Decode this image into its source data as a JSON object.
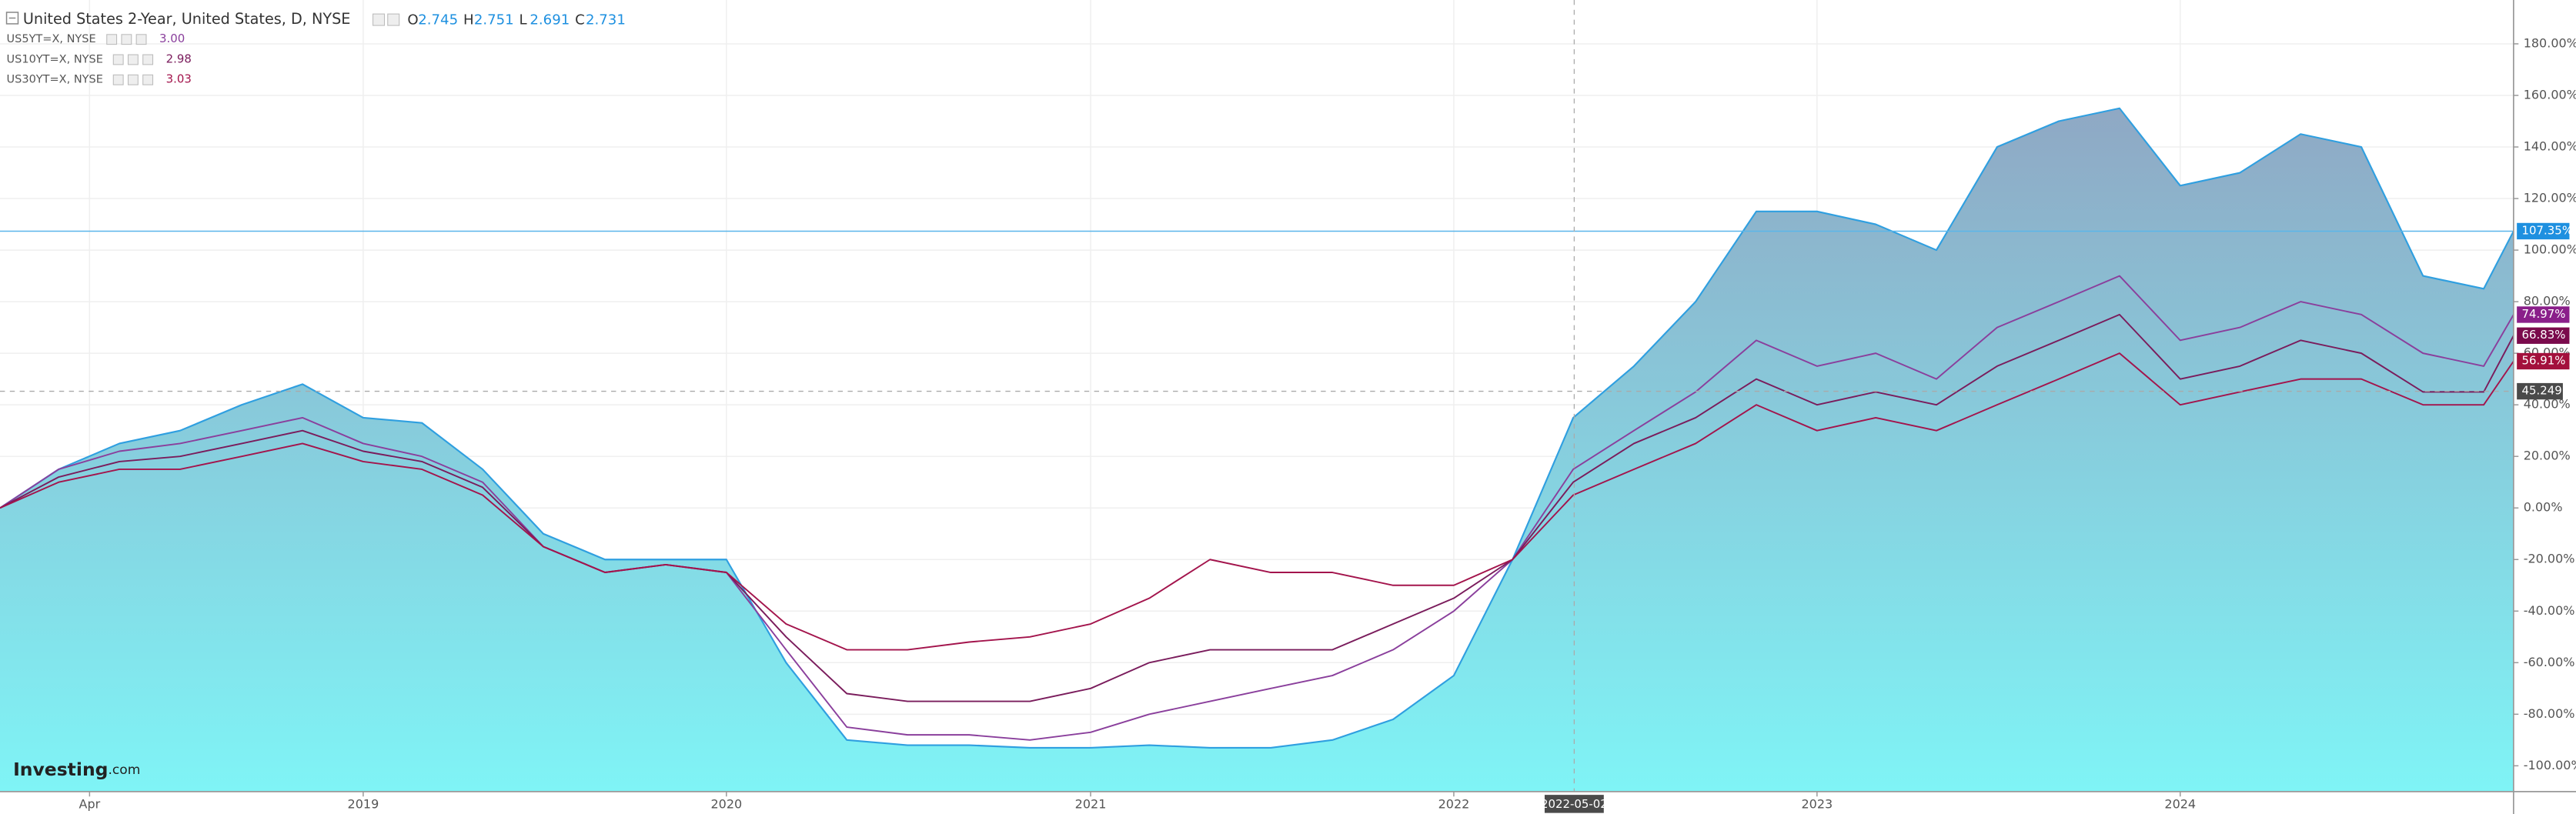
{
  "chart_data": {
    "type": "line",
    "x": [
      "2018-01-01",
      "2018-03-01",
      "2018-05-01",
      "2018-07-01",
      "2018-09-01",
      "2018-11-01",
      "2019-01-01",
      "2019-03-01",
      "2019-05-01",
      "2019-07-01",
      "2019-09-01",
      "2019-11-01",
      "2020-01-01",
      "2020-03-01",
      "2020-05-01",
      "2020-07-01",
      "2020-09-01",
      "2020-11-01",
      "2021-01-01",
      "2021-03-01",
      "2021-05-01",
      "2021-07-01",
      "2021-09-01",
      "2021-11-01",
      "2022-01-01",
      "2022-03-01",
      "2022-05-01",
      "2022-07-01",
      "2022-09-01",
      "2022-11-01",
      "2023-01-01",
      "2023-03-01",
      "2023-05-01",
      "2023-07-01",
      "2023-09-01",
      "2023-11-01",
      "2024-01-01",
      "2024-03-01",
      "2024-05-01",
      "2024-07-01",
      "2024-09-01",
      "2024-11-01",
      "2024-12-01"
    ],
    "series": [
      {
        "name": "United States 2-Year, United States, D, NYSE",
        "color": "#2f9fe0",
        "area": true,
        "values": [
          0,
          15,
          25,
          30,
          40,
          48,
          35,
          33,
          15,
          -10,
          -20,
          -20,
          -20,
          -60,
          -90,
          -92,
          -92,
          -93,
          -93,
          -92,
          -93,
          -93,
          -90,
          -82,
          -65,
          -20,
          35,
          55,
          80,
          115,
          115,
          110,
          100,
          140,
          150,
          155,
          125,
          130,
          145,
          140,
          90,
          85,
          107.35
        ],
        "value_labels": [
          null,
          null,
          null,
          null,
          null,
          null,
          null,
          null,
          null,
          null,
          null,
          null,
          null,
          null,
          null,
          null,
          null,
          null,
          null,
          null,
          null,
          null,
          null,
          null,
          null,
          null,
          null,
          null,
          null,
          null,
          null,
          null,
          null,
          null,
          null,
          null,
          null,
          null,
          null,
          null,
          null,
          null,
          "107.35%"
        ]
      },
      {
        "name": "US5YT=X, NYSE",
        "color": "#8a3f9c",
        "quote": {
          "value": 3,
          "label": "3.00"
        },
        "values": [
          0,
          15,
          22,
          25,
          30,
          35,
          25,
          20,
          10,
          -15,
          -25,
          -22,
          -25,
          -55,
          -85,
          -88,
          -88,
          -90,
          -87,
          -80,
          -75,
          -70,
          -65,
          -55,
          -40,
          -20,
          15,
          30,
          45,
          65,
          55,
          60,
          50,
          70,
          80,
          90,
          65,
          70,
          80,
          75,
          60,
          55,
          74.97
        ],
        "value_labels": [
          null,
          null,
          null,
          null,
          null,
          null,
          null,
          null,
          null,
          null,
          null,
          null,
          null,
          null,
          null,
          null,
          null,
          null,
          null,
          null,
          null,
          null,
          null,
          null,
          null,
          null,
          null,
          null,
          null,
          null,
          null,
          null,
          null,
          null,
          null,
          null,
          null,
          null,
          null,
          null,
          null,
          null,
          "74.97%"
        ]
      },
      {
        "name": "US10YT=X, NYSE",
        "color": "#7a1c5c",
        "quote": {
          "value": 2.98,
          "label": "2.98"
        },
        "values": [
          0,
          12,
          18,
          20,
          25,
          30,
          22,
          18,
          8,
          -15,
          -25,
          -22,
          -25,
          -50,
          -72,
          -75,
          -75,
          -75,
          -70,
          -60,
          -55,
          -55,
          -55,
          -45,
          -35,
          -20,
          10,
          25,
          35,
          50,
          40,
          45,
          40,
          55,
          65,
          75,
          50,
          55,
          65,
          60,
          45,
          45,
          66.83
        ],
        "value_labels": [
          null,
          null,
          null,
          null,
          null,
          null,
          null,
          null,
          null,
          null,
          null,
          null,
          null,
          null,
          null,
          null,
          null,
          null,
          null,
          null,
          null,
          null,
          null,
          null,
          null,
          null,
          null,
          null,
          null,
          null,
          null,
          null,
          null,
          null,
          null,
          null,
          null,
          null,
          null,
          null,
          null,
          null,
          "66.83%"
        ]
      },
      {
        "name": "US30YT=X, NYSE",
        "color": "#a3144c",
        "quote": {
          "value": 3.03,
          "label": "3.03"
        },
        "values": [
          0,
          10,
          15,
          15,
          20,
          25,
          18,
          15,
          5,
          -15,
          -25,
          -22,
          -25,
          -45,
          -55,
          -55,
          -52,
          -50,
          -45,
          -35,
          -20,
          -25,
          -25,
          -30,
          -30,
          -20,
          5,
          15,
          25,
          40,
          30,
          35,
          30,
          40,
          50,
          60,
          40,
          45,
          50,
          50,
          40,
          40,
          56.91
        ],
        "value_labels": [
          null,
          null,
          null,
          null,
          null,
          null,
          null,
          null,
          null,
          null,
          null,
          null,
          null,
          null,
          null,
          null,
          null,
          null,
          null,
          null,
          null,
          null,
          null,
          null,
          null,
          null,
          null,
          null,
          null,
          null,
          null,
          null,
          null,
          null,
          null,
          null,
          null,
          null,
          null,
          null,
          null,
          null,
          "56.91%"
        ]
      }
    ],
    "ohlc": [
      {
        "label": "O",
        "value": 2.745
      },
      {
        "label": "H",
        "value": 2.751
      },
      {
        "label": "L",
        "value": 2.691
      },
      {
        "label": "C",
        "value": 2.731
      }
    ],
    "xlim": [
      "2018-01-01",
      "2024-12-01"
    ],
    "xticks": [
      {
        "value": "2018-04-01",
        "label": "Apr"
      },
      {
        "value": "2019-01-01",
        "label": "2019"
      },
      {
        "value": "2020-01-01",
        "label": "2020"
      },
      {
        "value": "2021-01-01",
        "label": "2021"
      },
      {
        "value": "2022-01-01",
        "label": "2022"
      },
      {
        "value": "2023-01-01",
        "label": "2023"
      },
      {
        "value": "2024-01-01",
        "label": "2024"
      }
    ],
    "ylim": [
      -110,
      197
    ],
    "yticks": [
      {
        "value": -100,
        "label": "-100.00%"
      },
      {
        "value": -80,
        "label": "-80.00%"
      },
      {
        "value": -60,
        "label": "-60.00%"
      },
      {
        "value": -40,
        "label": "-40.00%"
      },
      {
        "value": -20,
        "label": "-20.00%"
      },
      {
        "value": 0,
        "label": "0.00%"
      },
      {
        "value": 20,
        "label": "20.00%"
      },
      {
        "value": 40,
        "label": "40.00%"
      },
      {
        "value": 60,
        "label": "60.00%"
      },
      {
        "value": 80,
        "label": "80.00%"
      },
      {
        "value": 100,
        "label": "100.00%"
      },
      {
        "value": 120,
        "label": "120.00%"
      },
      {
        "value": 140,
        "label": "140.00%"
      },
      {
        "value": 160,
        "label": "160.00%"
      },
      {
        "value": 180,
        "label": "180.00%"
      }
    ],
    "grid": true,
    "crosshair": {
      "x": "2022-05-02",
      "y": 45.249
    },
    "logo": [
      "Investing",
      ".com"
    ]
  }
}
